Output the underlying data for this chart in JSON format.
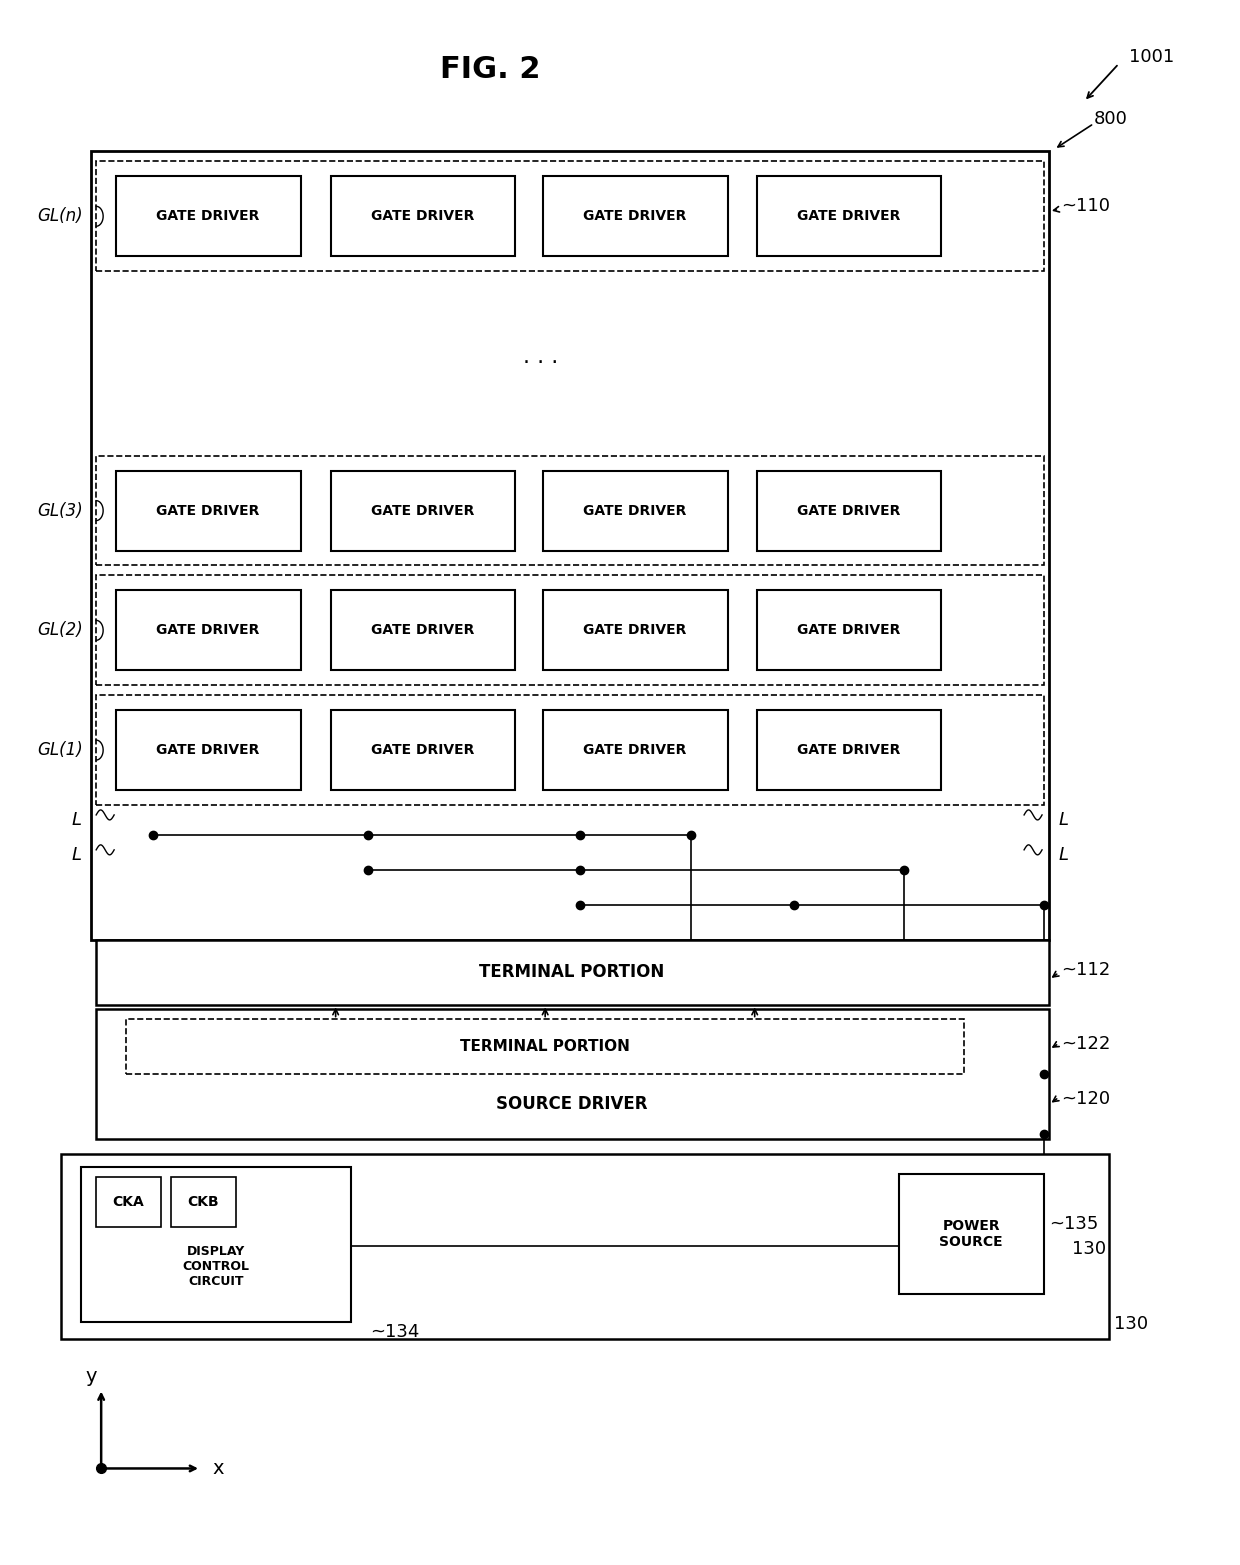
{
  "bg_color": "#ffffff",
  "fig_width": 12.4,
  "fig_height": 15.65,
  "title": "FIG. 2",
  "ref_1001": "1001",
  "ref_800": "800",
  "ref_110": "~110",
  "ref_112": "~112",
  "ref_122": "~122",
  "ref_120": "~120",
  "ref_130": "~130",
  "ref_134": "~134",
  "ref_135": "~135",
  "gate_driver": "GATE DRIVER",
  "terminal_portion": "TERMINAL PORTION",
  "source_driver": "SOURCE DRIVER",
  "display_control": "DISPLAY\nCONTROL\nCIRCUIT",
  "power_source": "POWER\nSOURCE",
  "cka": "CKA",
  "ckb": "CKB",
  "L": "L",
  "x_label": "x",
  "y_label": "y",
  "dots": "· · ·"
}
